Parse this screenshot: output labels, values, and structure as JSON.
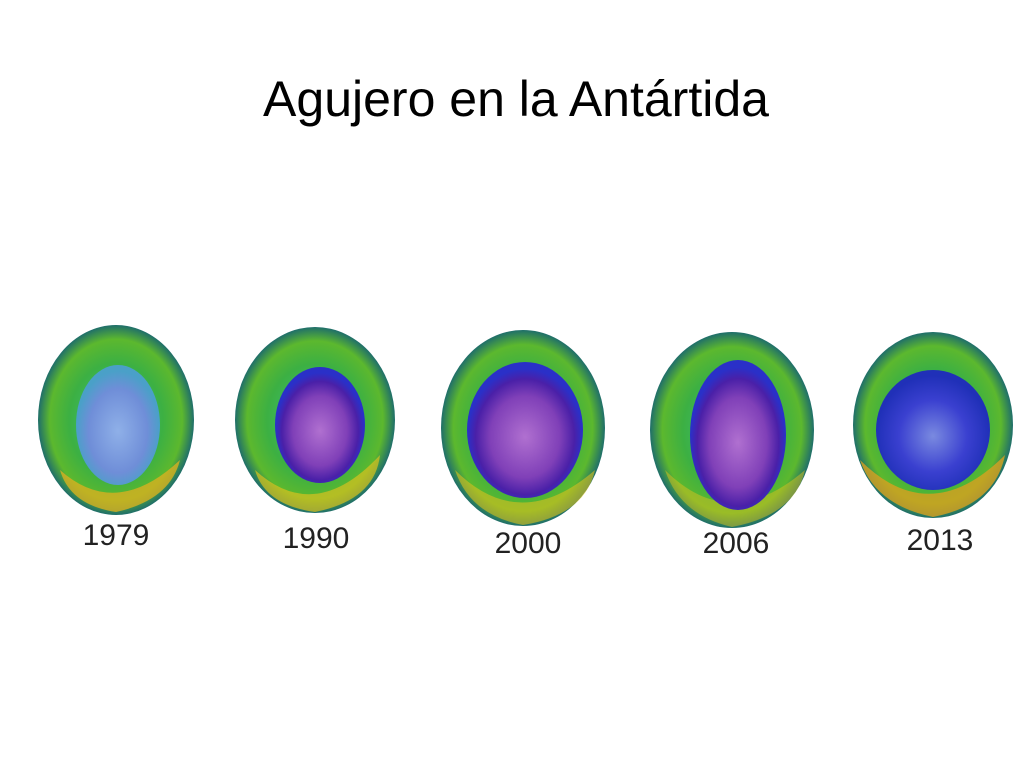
{
  "title": "Agujero en la Antártida",
  "images": [
    {
      "label": "1979"
    },
    {
      "label": "1990"
    },
    {
      "label": "2000"
    },
    {
      "label": "2006"
    },
    {
      "label": "2013"
    }
  ]
}
